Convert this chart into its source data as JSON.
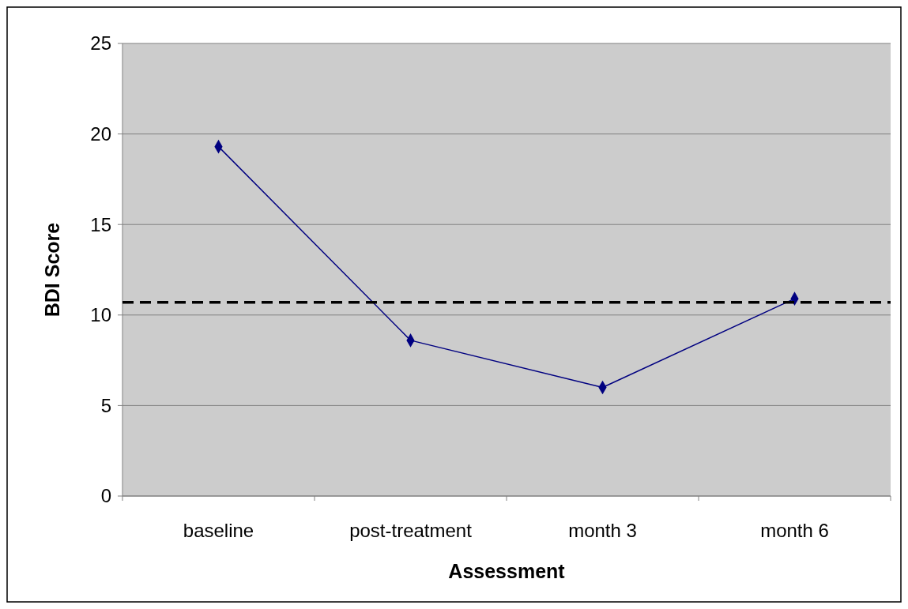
{
  "chart_data": {
    "type": "line",
    "xlabel": "Assessment",
    "ylabel": "BDI Score",
    "categories": [
      "baseline",
      "post-treatment",
      "month 3",
      "month 6"
    ],
    "series": [
      {
        "color": "#000080",
        "values": [
          19.3,
          8.6,
          6.0,
          10.9
        ]
      }
    ],
    "ylim": [
      0,
      25
    ],
    "yticks": [
      0,
      5,
      10,
      15,
      20,
      25
    ],
    "grid": "y",
    "marker": "diamond",
    "ref_lines": [
      {
        "axis": "y",
        "value": 10.7,
        "color": "#000000",
        "line_style": "dashed"
      }
    ]
  }
}
